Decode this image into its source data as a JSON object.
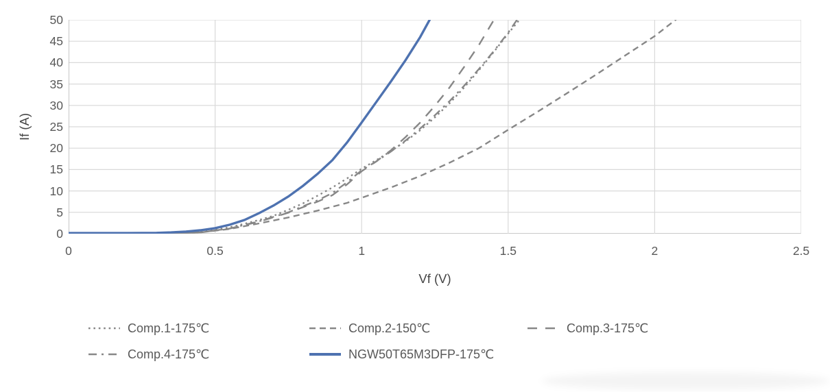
{
  "chart_data": {
    "type": "line",
    "title": "",
    "xlabel": "Vf (V)",
    "ylabel": "If (A)",
    "xlim": [
      0,
      2.5
    ],
    "ylim": [
      0,
      50
    ],
    "x_ticks": [
      0,
      0.5,
      1,
      1.5,
      2,
      2.5
    ],
    "y_ticks": [
      0,
      5,
      10,
      15,
      20,
      25,
      30,
      35,
      40,
      45,
      50
    ],
    "grid": true,
    "legend_position": "bottom",
    "colors": {
      "grid_line": "#d9d9d9",
      "axis_line": "#b7b7b7",
      "tick_text": "#595959",
      "axis_title_text": "#454545",
      "gray_series": "#878787",
      "blue_series": "#4e72b0"
    },
    "series": [
      {
        "name": "Comp.1-175℃",
        "line_style": "dotted",
        "color": "#878787",
        "points": [
          [
            0,
            0
          ],
          [
            0.3,
            0.05
          ],
          [
            0.4,
            0.2
          ],
          [
            0.5,
            0.9
          ],
          [
            0.55,
            1.5
          ],
          [
            0.6,
            2.3
          ],
          [
            0.65,
            3.2
          ],
          [
            0.7,
            4.2
          ],
          [
            0.75,
            5.6
          ],
          [
            0.8,
            7.1
          ],
          [
            0.85,
            8.9
          ],
          [
            0.9,
            10.8
          ],
          [
            0.95,
            12.9
          ],
          [
            1.0,
            15.2
          ],
          [
            1.05,
            17.2
          ],
          [
            1.1,
            19.3
          ],
          [
            1.15,
            21.6
          ],
          [
            1.2,
            24.2
          ],
          [
            1.25,
            27.2
          ],
          [
            1.3,
            30.5
          ],
          [
            1.35,
            34.2
          ],
          [
            1.4,
            38.2
          ],
          [
            1.45,
            42.4
          ],
          [
            1.5,
            46.8
          ],
          [
            1.55,
            51
          ]
        ]
      },
      {
        "name": "Comp.2-150℃",
        "line_style": "dashed",
        "color": "#878787",
        "points": [
          [
            0,
            0
          ],
          [
            0.35,
            0.05
          ],
          [
            0.45,
            0.3
          ],
          [
            0.55,
            1.1
          ],
          [
            0.65,
            2.4
          ],
          [
            0.75,
            3.8
          ],
          [
            0.85,
            5.4
          ],
          [
            0.95,
            7.2
          ],
          [
            1.0,
            8.4
          ],
          [
            1.1,
            10.8
          ],
          [
            1.2,
            13.5
          ],
          [
            1.3,
            16.6
          ],
          [
            1.4,
            20.0
          ],
          [
            1.5,
            24.3
          ],
          [
            1.6,
            28.5
          ],
          [
            1.7,
            32.8
          ],
          [
            1.8,
            37.2
          ],
          [
            1.9,
            41.7
          ],
          [
            2.0,
            46.2
          ],
          [
            2.09,
            51
          ]
        ]
      },
      {
        "name": "Comp.3-175℃",
        "line_style": "long-dash",
        "color": "#878787",
        "points": [
          [
            0,
            0
          ],
          [
            0.35,
            0.05
          ],
          [
            0.45,
            0.3
          ],
          [
            0.55,
            1.2
          ],
          [
            0.65,
            2.8
          ],
          [
            0.75,
            4.9
          ],
          [
            0.85,
            7.5
          ],
          [
            0.9,
            9.0
          ],
          [
            0.95,
            11.5
          ],
          [
            1.0,
            14.6
          ],
          [
            1.05,
            16.9
          ],
          [
            1.1,
            19.5
          ],
          [
            1.15,
            22.6
          ],
          [
            1.2,
            26.0
          ],
          [
            1.25,
            29.9
          ],
          [
            1.3,
            34.2
          ],
          [
            1.35,
            39.0
          ],
          [
            1.4,
            44.1
          ],
          [
            1.46,
            51
          ]
        ]
      },
      {
        "name": "Comp.4-175℃",
        "line_style": "dash-dot",
        "color": "#878787",
        "points": [
          [
            0,
            0
          ],
          [
            0.35,
            0.05
          ],
          [
            0.45,
            0.3
          ],
          [
            0.55,
            1.2
          ],
          [
            0.65,
            2.9
          ],
          [
            0.75,
            5.0
          ],
          [
            0.85,
            7.8
          ],
          [
            0.9,
            9.5
          ],
          [
            0.95,
            12.0
          ],
          [
            1.0,
            14.8
          ],
          [
            1.05,
            16.9
          ],
          [
            1.1,
            19.2
          ],
          [
            1.15,
            21.8
          ],
          [
            1.2,
            24.6
          ],
          [
            1.25,
            27.7
          ],
          [
            1.3,
            31.0
          ],
          [
            1.35,
            34.6
          ],
          [
            1.4,
            38.5
          ],
          [
            1.45,
            42.6
          ],
          [
            1.5,
            47.0
          ],
          [
            1.54,
            51
          ]
        ]
      },
      {
        "name": "NGW50T65M3DFP-175℃",
        "line_style": "solid",
        "color": "#4e72b0",
        "points": [
          [
            0,
            0.15
          ],
          [
            0.2,
            0.15
          ],
          [
            0.3,
            0.2
          ],
          [
            0.35,
            0.3
          ],
          [
            0.4,
            0.5
          ],
          [
            0.45,
            0.8
          ],
          [
            0.5,
            1.3
          ],
          [
            0.55,
            2.1
          ],
          [
            0.6,
            3.2
          ],
          [
            0.65,
            4.8
          ],
          [
            0.7,
            6.6
          ],
          [
            0.75,
            8.7
          ],
          [
            0.8,
            11.2
          ],
          [
            0.85,
            14.0
          ],
          [
            0.9,
            17.2
          ],
          [
            0.95,
            21.3
          ],
          [
            1.0,
            26.0
          ],
          [
            1.05,
            30.8
          ],
          [
            1.1,
            35.6
          ],
          [
            1.15,
            40.6
          ],
          [
            1.2,
            46.0
          ],
          [
            1.24,
            51
          ]
        ]
      }
    ],
    "legend_rows": [
      3,
      2
    ]
  }
}
